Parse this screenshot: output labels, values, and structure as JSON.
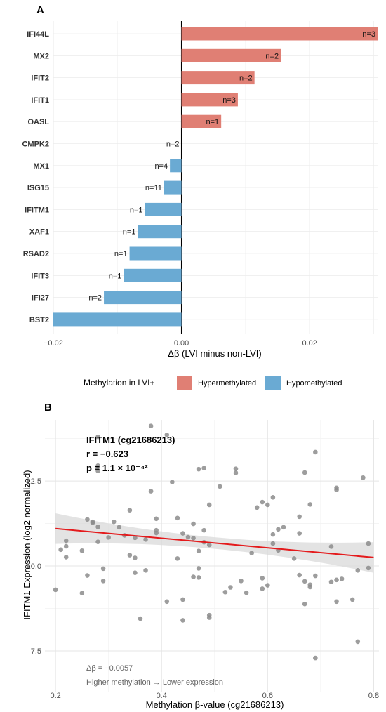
{
  "chart_data": [
    {
      "panel": "A",
      "type": "bar",
      "orientation": "horizontal",
      "categories": [
        "IFI44L",
        "MX2",
        "IFIT2",
        "IFIT1",
        "OASL",
        "CMPK2",
        "MX1",
        "ISG15",
        "IFITM1",
        "XAF1",
        "RSAD2",
        "IFIT3",
        "IFI27",
        "BST2"
      ],
      "values": [
        0.0306,
        0.0155,
        0.0114,
        0.0088,
        0.0062,
        0.0,
        -0.0018,
        -0.0027,
        -0.0057,
        -0.0068,
        -0.0081,
        -0.009,
        -0.0121,
        -0.0201
      ],
      "n_labels": [
        "n=3",
        "n=2",
        "n=2",
        "n=3",
        "n=1",
        "n=2",
        "n=4",
        "n=11",
        "n=1",
        "n=1",
        "n=1",
        "n=1",
        "n=2",
        ""
      ],
      "xlabel": "Δβ (LVI minus non-LVI)",
      "xlim": [
        -0.0201,
        0.0306
      ],
      "xticks": [
        -0.02,
        0.0,
        0.02
      ],
      "xtick_labels": [
        "−0.02",
        "0.00",
        "0.02"
      ],
      "colors": {
        "Hypermethylated": "#e07f74",
        "Hypomethylated": "#6aaad3"
      },
      "legend": {
        "title": "Methylation in LVI+",
        "entries": [
          "Hypermethylated",
          "Hypomethylated"
        ],
        "position": "bottom"
      },
      "grid": true
    },
    {
      "panel": "B",
      "type": "scatter",
      "xlabel": "Methylation β-value (cg21686213)",
      "ylabel": "IFITM1 Expression (log2 normalized)",
      "xlim": [
        0.18,
        0.81
      ],
      "ylim": [
        6.3,
        14.3
      ],
      "xticks": [
        0.2,
        0.4,
        0.6,
        0.8
      ],
      "xtick_labels": [
        "0.2",
        "0.4",
        "0.6",
        "0.8"
      ],
      "yticks": [
        7.5,
        10.0,
        12.5
      ],
      "ytick_labels": [
        "7.5",
        "10.0",
        "12.5"
      ],
      "annotation_title": "IFITM1 (cg21686213)",
      "annotation_r": "r = −0.623",
      "annotation_p": "p = 1.1 × 10⁻⁴²",
      "note_delta": "Δβ = −0.0057",
      "note_trend": "Higher methylation → Lower expression",
      "point_color": "#8c8c8c",
      "line_color": "#e41a1c",
      "fit": {
        "x": [
          0.2,
          0.8
        ],
        "y": [
          11.1,
          10.25
        ],
        "ci_halfwidth_ends": [
          0.45,
          0.45
        ],
        "ci_halfwidth_mid": 0.17
      },
      "points": [
        [
          0.2,
          9.3
        ],
        [
          0.21,
          10.48
        ],
        [
          0.22,
          10.74
        ],
        [
          0.22,
          10.26
        ],
        [
          0.22,
          10.58
        ],
        [
          0.25,
          10.45
        ],
        [
          0.25,
          9.2
        ],
        [
          0.26,
          11.37
        ],
        [
          0.26,
          9.72
        ],
        [
          0.27,
          11.27
        ],
        [
          0.27,
          11.3
        ],
        [
          0.28,
          13.8
        ],
        [
          0.28,
          12.8
        ],
        [
          0.28,
          10.71
        ],
        [
          0.28,
          11.15
        ],
        [
          0.28,
          12.95
        ],
        [
          0.29,
          9.92
        ],
        [
          0.29,
          9.56
        ],
        [
          0.3,
          10.84
        ],
        [
          0.31,
          11.3
        ],
        [
          0.32,
          11.14
        ],
        [
          0.33,
          10.9
        ],
        [
          0.34,
          10.32
        ],
        [
          0.34,
          11.64
        ],
        [
          0.35,
          10.83
        ],
        [
          0.35,
          9.8
        ],
        [
          0.35,
          10.24
        ],
        [
          0.36,
          8.45
        ],
        [
          0.37,
          10.78
        ],
        [
          0.37,
          9.87
        ],
        [
          0.38,
          14.12
        ],
        [
          0.38,
          12.2
        ],
        [
          0.39,
          11.05
        ],
        [
          0.39,
          10.97
        ],
        [
          0.39,
          11.39
        ],
        [
          0.41,
          13.86
        ],
        [
          0.41,
          8.95
        ],
        [
          0.42,
          12.47
        ],
        [
          0.43,
          11.41
        ],
        [
          0.43,
          10.22
        ],
        [
          0.44,
          10.96
        ],
        [
          0.44,
          9.01
        ],
        [
          0.44,
          8.4
        ],
        [
          0.45,
          10.85
        ],
        [
          0.46,
          9.68
        ],
        [
          0.46,
          10.82
        ],
        [
          0.46,
          11.24
        ],
        [
          0.47,
          12.85
        ],
        [
          0.47,
          9.93
        ],
        [
          0.47,
          9.66
        ],
        [
          0.47,
          10.44
        ],
        [
          0.48,
          12.88
        ],
        [
          0.48,
          10.7
        ],
        [
          0.48,
          11.05
        ],
        [
          0.49,
          10.62
        ],
        [
          0.49,
          8.48
        ],
        [
          0.49,
          8.55
        ],
        [
          0.49,
          11.8
        ],
        [
          0.51,
          12.34
        ],
        [
          0.52,
          9.23
        ],
        [
          0.53,
          9.37
        ],
        [
          0.54,
          12.86
        ],
        [
          0.54,
          12.74
        ],
        [
          0.55,
          9.56
        ],
        [
          0.56,
          9.21
        ],
        [
          0.57,
          10.38
        ],
        [
          0.58,
          11.72
        ],
        [
          0.59,
          11.88
        ],
        [
          0.59,
          9.64
        ],
        [
          0.59,
          9.33
        ],
        [
          0.6,
          11.8
        ],
        [
          0.6,
          9.43
        ],
        [
          0.61,
          12.02
        ],
        [
          0.61,
          10.93
        ],
        [
          0.61,
          10.66
        ],
        [
          0.62,
          10.46
        ],
        [
          0.62,
          11.08
        ],
        [
          0.63,
          11.14
        ],
        [
          0.65,
          10.22
        ],
        [
          0.66,
          11.45
        ],
        [
          0.66,
          10.96
        ],
        [
          0.66,
          9.73
        ],
        [
          0.67,
          12.75
        ],
        [
          0.67,
          9.55
        ],
        [
          0.67,
          8.88
        ],
        [
          0.68,
          9.38
        ],
        [
          0.68,
          9.45
        ],
        [
          0.68,
          11.81
        ],
        [
          0.69,
          13.35
        ],
        [
          0.69,
          9.71
        ],
        [
          0.69,
          7.29
        ],
        [
          0.72,
          9.53
        ],
        [
          0.72,
          10.57
        ],
        [
          0.73,
          12.24
        ],
        [
          0.73,
          9.59
        ],
        [
          0.73,
          8.95
        ],
        [
          0.73,
          12.3
        ],
        [
          0.74,
          9.62
        ],
        [
          0.76,
          9.01
        ],
        [
          0.77,
          7.77
        ],
        [
          0.77,
          9.87
        ],
        [
          0.78,
          12.6
        ],
        [
          0.79,
          9.94
        ],
        [
          0.79,
          10.66
        ]
      ],
      "grid": true
    }
  ]
}
